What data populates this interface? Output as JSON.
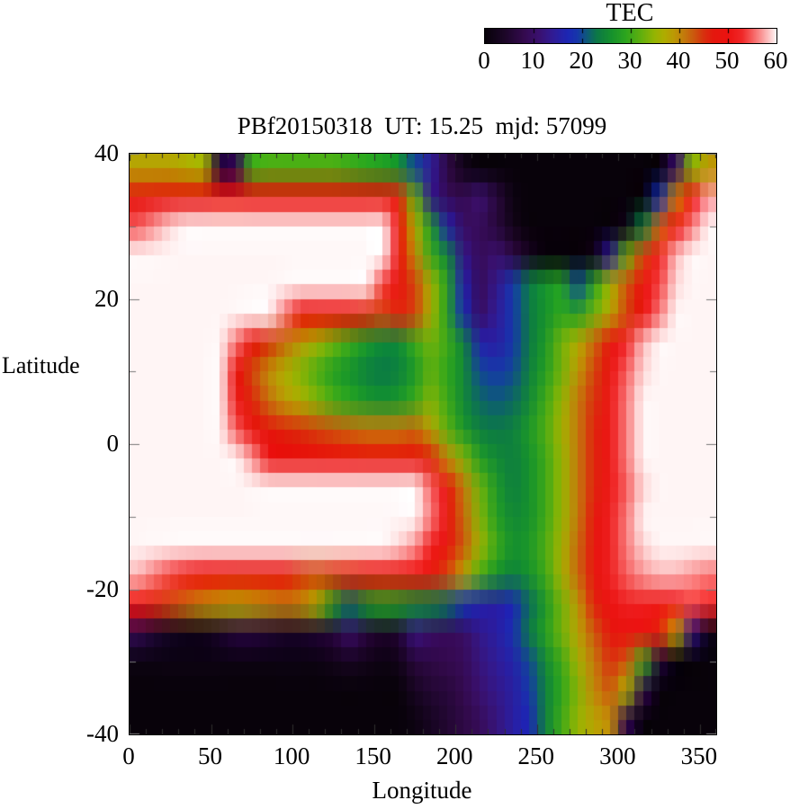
{
  "colorbar": {
    "title": "TEC",
    "min": 0,
    "max": 60,
    "tick_values": [
      0,
      10,
      20,
      30,
      40,
      50,
      60
    ],
    "tick_labels": [
      "0",
      "10",
      "20",
      "30",
      "40",
      "50",
      "60"
    ],
    "palette_stops": [
      [
        0,
        [
          8,
          2,
          10
        ]
      ],
      [
        4,
        [
          28,
          6,
          40
        ]
      ],
      [
        8,
        [
          52,
          10,
          78
        ]
      ],
      [
        11,
        [
          58,
          16,
          110
        ]
      ],
      [
        14,
        [
          48,
          28,
          150
        ]
      ],
      [
        17,
        [
          28,
          38,
          180
        ]
      ],
      [
        19,
        [
          22,
          55,
          170
        ]
      ],
      [
        21,
        [
          14,
          90,
          120
        ]
      ],
      [
        23,
        [
          12,
          120,
          70
        ]
      ],
      [
        26,
        [
          22,
          145,
          45
        ]
      ],
      [
        29,
        [
          45,
          165,
          30
        ]
      ],
      [
        32,
        [
          95,
          175,
          15
        ]
      ],
      [
        35,
        [
          150,
          180,
          2
        ]
      ],
      [
        37,
        [
          175,
          172,
          0
        ]
      ],
      [
        39,
        [
          188,
          152,
          5
        ]
      ],
      [
        41,
        [
          195,
          122,
          12
        ]
      ],
      [
        43,
        [
          203,
          88,
          14
        ]
      ],
      [
        45,
        [
          215,
          50,
          14
        ]
      ],
      [
        47,
        [
          228,
          24,
          14
        ]
      ],
      [
        50,
        [
          235,
          18,
          16
        ]
      ],
      [
        53,
        [
          240,
          40,
          40
        ]
      ],
      [
        55,
        [
          246,
          92,
          92
        ]
      ],
      [
        57,
        [
          250,
          150,
          150
        ]
      ],
      [
        59,
        [
          253,
          212,
          212
        ]
      ],
      [
        60,
        [
          255,
          245,
          245
        ]
      ]
    ]
  },
  "plot": {
    "title": "PBf20150318  UT: 15.25  mjd: 57099",
    "xlabel": "Longitude",
    "ylabel": "Latitude",
    "xlim": [
      0,
      360
    ],
    "ylim": [
      -40,
      40
    ],
    "x_major_ticks": [
      0,
      50,
      100,
      150,
      200,
      250,
      300,
      350
    ],
    "x_minor_step": 10,
    "y_major_ticks": [
      40,
      20,
      0,
      -20,
      -40
    ],
    "y_minor_step": 10,
    "frame_color": "#000000",
    "tick_color_bottom": "#303030",
    "tick_color_side": "#787878",
    "background": "#ffffff"
  },
  "chart_data": {
    "type": "heatmap",
    "title": "PBf20150318  UT: 15.25  mjd: 57099",
    "xlabel": "Longitude",
    "ylabel": "Latitude",
    "colorbar_label": "TEC",
    "clim": [
      0,
      60
    ],
    "xlim": [
      0,
      360
    ],
    "ylim": [
      -40,
      40
    ],
    "x_centers": [
      5,
      15,
      25,
      35,
      45,
      55,
      65,
      75,
      85,
      95,
      105,
      115,
      125,
      135,
      145,
      155,
      165,
      175,
      185,
      195,
      205,
      215,
      225,
      235,
      245,
      255,
      265,
      275,
      285,
      295,
      305,
      315,
      325,
      335,
      345,
      355
    ],
    "y_centers": [
      38,
      34,
      30,
      26,
      22,
      18,
      14,
      10,
      6,
      2,
      -2,
      -6,
      -10,
      -14,
      -18,
      -22,
      -26,
      -30,
      -34,
      -38
    ],
    "values": [
      [
        38,
        38,
        38,
        37,
        36,
        6,
        8,
        30,
        31,
        31,
        31,
        31,
        31,
        30,
        29,
        28,
        26,
        20,
        14,
        7,
        2,
        0,
        0,
        0,
        0,
        0,
        0,
        0,
        0,
        0,
        0,
        0,
        0,
        10,
        34,
        39
      ],
      [
        47,
        48,
        48,
        48,
        48,
        48,
        48,
        48,
        48,
        48,
        48,
        48,
        48,
        48,
        48,
        47,
        46,
        32,
        13,
        9,
        8,
        11,
        6,
        1,
        0,
        0,
        0,
        0,
        0,
        0,
        0,
        0,
        18,
        40,
        50,
        57
      ],
      [
        55,
        57,
        59,
        61,
        63,
        63,
        63,
        63,
        63,
        63,
        63,
        63,
        63,
        63,
        63,
        60,
        50,
        37,
        27,
        16,
        10,
        9,
        6,
        2,
        0,
        0,
        0,
        0,
        0,
        0,
        2,
        24,
        42,
        50,
        56,
        62
      ],
      [
        63,
        63,
        63,
        63,
        63,
        63,
        63,
        63,
        63,
        63,
        63,
        63,
        63,
        63,
        63,
        61,
        50,
        40,
        30,
        24,
        13,
        9,
        11,
        7,
        3,
        0,
        0,
        0,
        2,
        14,
        32,
        44,
        52,
        58,
        62,
        63
      ],
      [
        63,
        63,
        63,
        63,
        63,
        63,
        63,
        63,
        63,
        63,
        63,
        63,
        63,
        63,
        60,
        54,
        48,
        44,
        36,
        28,
        16,
        9,
        13,
        19,
        23,
        26,
        28,
        20,
        28,
        36,
        43,
        49,
        54,
        59,
        62,
        63
      ],
      [
        63,
        63,
        63,
        63,
        63,
        63,
        63,
        63,
        62,
        56,
        49,
        49,
        49,
        48,
        46,
        44,
        46,
        44,
        36,
        28,
        18,
        10,
        14,
        19,
        23,
        26,
        29,
        28,
        33,
        38,
        44,
        50,
        56,
        61,
        63,
        63
      ],
      [
        63,
        63,
        63,
        63,
        63,
        63,
        56,
        49,
        45,
        42,
        39,
        36,
        33,
        30,
        27,
        25,
        25,
        30,
        33,
        30,
        24,
        16,
        15,
        19,
        23,
        27,
        33,
        37,
        42,
        47,
        53,
        58,
        61,
        63,
        63,
        63
      ],
      [
        63,
        63,
        63,
        63,
        63,
        63,
        50,
        44,
        40,
        37,
        34,
        31,
        28,
        26,
        24,
        23,
        24,
        27,
        32,
        29,
        25,
        20,
        19,
        20,
        24,
        28,
        33,
        39,
        44,
        49,
        55,
        59,
        61,
        63,
        63,
        63
      ],
      [
        63,
        63,
        63,
        63,
        63,
        63,
        52,
        46,
        42,
        39,
        37,
        34,
        31,
        29,
        27,
        26,
        27,
        30,
        34,
        30,
        25,
        22,
        21,
        22,
        25,
        30,
        35,
        41,
        45,
        51,
        56,
        60,
        62,
        63,
        63,
        63
      ],
      [
        63,
        63,
        63,
        63,
        63,
        63,
        55,
        49,
        47,
        46,
        45,
        44,
        43,
        42,
        41,
        41,
        41,
        42,
        38,
        32,
        27,
        24,
        23,
        24,
        27,
        31,
        36,
        41,
        46,
        51,
        56,
        60,
        62,
        63,
        63,
        63
      ],
      [
        63,
        63,
        63,
        63,
        63,
        63,
        63,
        57,
        51,
        50,
        50,
        50,
        50,
        50,
        49,
        49,
        49,
        49,
        46,
        40,
        34,
        28,
        25,
        24,
        26,
        30,
        35,
        41,
        46,
        51,
        56,
        60,
        62,
        63,
        63,
        63
      ],
      [
        63,
        63,
        63,
        63,
        63,
        63,
        63,
        63,
        63,
        63,
        63,
        63,
        63,
        63,
        62,
        62,
        61,
        60,
        55,
        48,
        41,
        33,
        27,
        24,
        26,
        30,
        35,
        41,
        46,
        51,
        55,
        59,
        62,
        63,
        63,
        63
      ],
      [
        63,
        63,
        63,
        63,
        63,
        63,
        63,
        63,
        63,
        63,
        63,
        63,
        63,
        63,
        63,
        63,
        63,
        61,
        56,
        49,
        42,
        34,
        28,
        25,
        26,
        30,
        35,
        41,
        47,
        52,
        56,
        60,
        62,
        63,
        63,
        63
      ],
      [
        63,
        63,
        63,
        63,
        63,
        63,
        63,
        63,
        63,
        63,
        63,
        63,
        62,
        61,
        60,
        60,
        59,
        57,
        52,
        48,
        43,
        36,
        30,
        26,
        27,
        31,
        36,
        42,
        48,
        52,
        56,
        59,
        61,
        62,
        62,
        62
      ],
      [
        58,
        56,
        54,
        52,
        50,
        49,
        48,
        48,
        48,
        48,
        45,
        44,
        45,
        46,
        47,
        48,
        48,
        49,
        47,
        44,
        38,
        31,
        26,
        24,
        26,
        30,
        36,
        42,
        48,
        52,
        55,
        57,
        58,
        58,
        57,
        56
      ],
      [
        49,
        46,
        44,
        42,
        40,
        39,
        38,
        39,
        40,
        41,
        40,
        36,
        28,
        22,
        26,
        28,
        27,
        25,
        24,
        22,
        19,
        16,
        15,
        17,
        22,
        27,
        33,
        39,
        46,
        50,
        52,
        52,
        51,
        52,
        54,
        53
      ],
      [
        8,
        5,
        3,
        2,
        2,
        4,
        6,
        6,
        5,
        4,
        4,
        5,
        6,
        10,
        6,
        4,
        5,
        12,
        10,
        9,
        10,
        13,
        15,
        18,
        23,
        28,
        33,
        38,
        43,
        47,
        49,
        48,
        46,
        38,
        12,
        2
      ],
      [
        1,
        1,
        1,
        1,
        1,
        1,
        1,
        1,
        1,
        1,
        1,
        1,
        2,
        3,
        2,
        1,
        2,
        6,
        7,
        8,
        9,
        12,
        14,
        16,
        20,
        25,
        30,
        36,
        41,
        45,
        43,
        30,
        6,
        0,
        0,
        0
      ],
      [
        0,
        0,
        0,
        0,
        0,
        0,
        0,
        0,
        0,
        0,
        0,
        0,
        0,
        0,
        0,
        0,
        0,
        3,
        5,
        6,
        8,
        11,
        13,
        15,
        19,
        24,
        29,
        34,
        40,
        43,
        36,
        8,
        0,
        0,
        0,
        0
      ],
      [
        0,
        0,
        0,
        0,
        0,
        0,
        0,
        0,
        0,
        0,
        0,
        0,
        0,
        0,
        0,
        0,
        0,
        1,
        3,
        5,
        7,
        9,
        12,
        15,
        17,
        24,
        30,
        35,
        38,
        40,
        8,
        0,
        0,
        0,
        0,
        0
      ]
    ]
  }
}
